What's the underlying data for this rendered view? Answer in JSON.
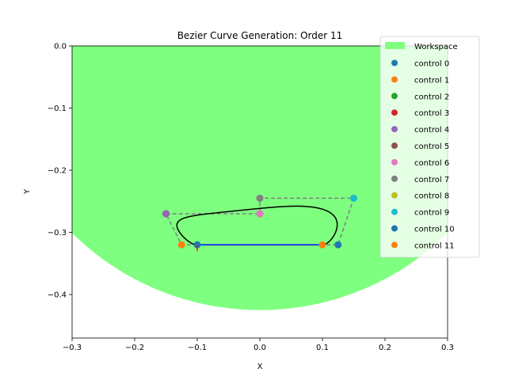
{
  "chart_data": {
    "type": "scatter",
    "title": "Bezier Curve Generation: Order 11",
    "xlabel": "X",
    "ylabel": "Y",
    "xlim": [
      -0.3,
      0.3
    ],
    "ylim": [
      -0.47,
      0.0
    ],
    "xticks": [
      -0.3,
      -0.2,
      -0.1,
      0.0,
      0.1,
      0.2,
      0.3
    ],
    "xtick_labels": [
      "−0.3",
      "−0.2",
      "−0.1",
      "0.0",
      "0.1",
      "0.2",
      "0.3"
    ],
    "yticks": [
      0.0,
      -0.1,
      -0.2,
      -0.3,
      -0.4
    ],
    "ytick_labels": [
      "0.0",
      "−0.1",
      "−0.2",
      "−0.3",
      "−0.4"
    ],
    "grid": false,
    "legend_placement": "top-right",
    "workspace": {
      "name": "Workspace",
      "color": "#7fff7f",
      "shape": "circle",
      "center": [
        0.0,
        0.0
      ],
      "radius": 0.425
    },
    "controls": [
      {
        "name": "control 0",
        "x": -0.1,
        "y": -0.32,
        "color": "#1f77b4"
      },
      {
        "name": "control 1",
        "x": -0.125,
        "y": -0.32,
        "color": "#ff7f0e"
      },
      {
        "name": "control 2",
        "x": -0.15,
        "y": -0.27,
        "color": "#2ca02c"
      },
      {
        "name": "control 3",
        "x": -0.15,
        "y": -0.27,
        "color": "#d62728"
      },
      {
        "name": "control 4",
        "x": -0.15,
        "y": -0.27,
        "color": "#9467bd"
      },
      {
        "name": "control 5",
        "x": 0.0,
        "y": -0.27,
        "color": "#8c564b"
      },
      {
        "name": "control 6",
        "x": 0.0,
        "y": -0.27,
        "color": "#e377c2"
      },
      {
        "name": "control 7",
        "x": 0.0,
        "y": -0.245,
        "color": "#7f7f7f"
      },
      {
        "name": "control 8",
        "x": 0.15,
        "y": -0.245,
        "color": "#bcbd22"
      },
      {
        "name": "control 9",
        "x": 0.15,
        "y": -0.245,
        "color": "#17becf"
      },
      {
        "name": "control 10",
        "x": 0.125,
        "y": -0.32,
        "color": "#1f77b4"
      },
      {
        "name": "control 11",
        "x": 0.1,
        "y": -0.32,
        "color": "#ff7f0e"
      }
    ],
    "baseline": {
      "x": [
        -0.1,
        0.1
      ],
      "y": [
        -0.32,
        -0.32
      ],
      "color": "#0000ff"
    },
    "start_marker": {
      "x": -0.1,
      "y": -0.32,
      "color": "#d62728"
    },
    "control_polygon_color": "#808080",
    "curve_color": "#000000"
  }
}
